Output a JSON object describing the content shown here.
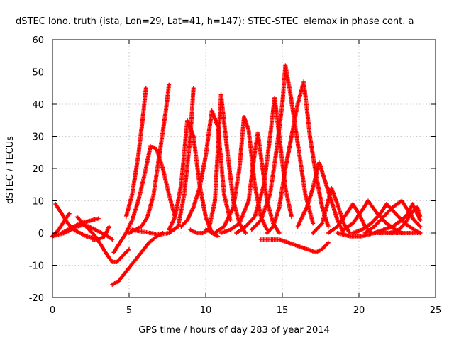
{
  "chart_data": {
    "type": "scatter",
    "title": "dSTEC Iono. truth (ista, Lon=29, Lat=41, h=147): STEC-STEC_elemax in phase cont. a",
    "xlabel": "GPS time / hours of day 283 of year 2014",
    "ylabel": "dSTEC  / TECUs",
    "xlim": [
      0,
      25
    ],
    "ylim": [
      -20,
      60
    ],
    "xticks": [
      "0",
      "5",
      "10",
      "15",
      "20",
      "25"
    ],
    "yticks": [
      "-20",
      "-10",
      "0",
      "10",
      "20",
      "30",
      "40",
      "50",
      "60"
    ],
    "grid": true,
    "marker": "plus",
    "color": "#ff0000",
    "series": [
      {
        "x": [
          0.0,
          0.4,
          0.8,
          1.2,
          1.6,
          2.0,
          2.4,
          2.8,
          3.2,
          3.6,
          3.9
        ],
        "y": [
          -1,
          -0.5,
          0,
          1,
          2,
          2.5,
          2,
          1,
          0,
          -1,
          -2
        ]
      },
      {
        "x": [
          0.2,
          0.6,
          1.0,
          1.4,
          1.8,
          2.2,
          2.6,
          3.0
        ],
        "y": [
          9,
          6,
          3,
          1,
          0,
          -1,
          -1.5,
          -2
        ]
      },
      {
        "x": [
          0.0,
          0.4,
          0.8,
          1.1
        ],
        "y": [
          -1,
          1,
          4,
          6
        ]
      },
      {
        "x": [
          0.6,
          1.0,
          1.4,
          1.8,
          2.2,
          2.6,
          3.0
        ],
        "y": [
          0,
          1,
          2,
          3,
          3.5,
          4,
          4.5
        ]
      },
      {
        "x": [
          1.6,
          2.0,
          2.4,
          2.8,
          3.2,
          3.6,
          3.9,
          4.2,
          4.6,
          5.0
        ],
        "y": [
          5,
          3,
          1,
          -1,
          -4,
          -7,
          -9,
          -9,
          -7,
          -5
        ]
      },
      {
        "x": [
          2.6,
          3.0,
          3.4,
          3.7
        ],
        "y": [
          -2,
          -2,
          -1,
          2
        ]
      },
      {
        "x": [
          3.9,
          4.3,
          4.8,
          5.3,
          5.8,
          6.3,
          6.8,
          7.2
        ],
        "y": [
          -16,
          -15,
          -12,
          -9,
          -6,
          -3,
          -1,
          0
        ]
      },
      {
        "x": [
          4.0,
          4.4,
          4.8,
          5.2,
          5.6,
          6.0,
          6.4,
          6.8,
          7.2,
          7.6,
          8.0
        ],
        "y": [
          -6,
          -3,
          0,
          4,
          10,
          18,
          27,
          26,
          20,
          12,
          5
        ]
      },
      {
        "x": [
          4.8,
          5.2,
          5.6,
          5.9,
          6.1
        ],
        "y": [
          5,
          12,
          24,
          36,
          45
        ]
      },
      {
        "x": [
          5.0,
          5.4,
          5.8,
          6.2,
          6.6,
          7.0,
          7.4,
          7.6
        ],
        "y": [
          0,
          1,
          2,
          5,
          12,
          25,
          38,
          46
        ]
      },
      {
        "x": [
          5.2,
          5.8,
          6.4,
          7.0,
          7.6,
          8.2,
          8.6,
          9.0,
          9.2
        ],
        "y": [
          1,
          0.5,
          0,
          -0.5,
          0,
          2,
          12,
          30,
          45
        ]
      },
      {
        "x": [
          7.6,
          8.0,
          8.4,
          8.8,
          9.2,
          9.6,
          10.0,
          10.4,
          10.8
        ],
        "y": [
          1,
          5,
          15,
          35,
          30,
          15,
          5,
          0,
          -1
        ]
      },
      {
        "x": [
          8.4,
          8.8,
          9.2,
          9.6,
          10.0,
          10.4,
          10.8,
          11.2,
          11.6
        ],
        "y": [
          2,
          4,
          8,
          14,
          24,
          38,
          33,
          12,
          4
        ]
      },
      {
        "x": [
          9.0,
          9.4,
          9.8,
          10.2,
          10.6,
          11.0,
          11.4,
          11.8,
          12.2,
          12.6
        ],
        "y": [
          1,
          0,
          0,
          1,
          10,
          43,
          26,
          10,
          3,
          0
        ]
      },
      {
        "x": [
          10.0,
          10.6,
          11.2,
          11.8,
          12.2,
          12.5,
          12.8,
          13.2,
          13.6,
          14.0
        ],
        "y": [
          1,
          0,
          2,
          8,
          20,
          36,
          32,
          15,
          5,
          1
        ]
      },
      {
        "x": [
          11.0,
          11.6,
          12.2,
          12.8,
          13.2,
          13.4,
          13.6,
          14.0,
          14.4,
          14.8
        ],
        "y": [
          0,
          1,
          3,
          10,
          25,
          31,
          24,
          10,
          3,
          0
        ]
      },
      {
        "x": [
          12.0,
          12.6,
          13.2,
          13.8,
          14.2,
          14.5,
          14.8,
          15.2,
          15.6
        ],
        "y": [
          0,
          2,
          5,
          15,
          30,
          42,
          30,
          14,
          5
        ]
      },
      {
        "x": [
          13.0,
          13.6,
          14.2,
          14.6,
          15.0,
          15.2,
          15.5,
          16.0,
          16.5,
          17.0
        ],
        "y": [
          1,
          4,
          12,
          25,
          40,
          52,
          44,
          28,
          12,
          3
        ]
      },
      {
        "x": [
          14.0,
          14.4,
          14.8,
          15.2,
          15.6,
          16.0,
          16.4,
          16.8,
          17.2,
          17.6,
          18.0
        ],
        "y": [
          0,
          2,
          8,
          20,
          30,
          40,
          47,
          30,
          18,
          8,
          2
        ]
      },
      {
        "x": [
          13.6,
          14.2,
          14.8,
          15.4,
          16.0,
          16.6,
          17.2,
          17.6,
          18.0
        ],
        "y": [
          -2,
          -2,
          -2,
          -3,
          -4,
          -5,
          -6,
          -5,
          -3
        ]
      },
      {
        "x": [
          16.0,
          16.6,
          17.0,
          17.4,
          17.8,
          18.2,
          18.6,
          19.0
        ],
        "y": [
          2,
          8,
          14,
          22,
          16,
          10,
          4,
          0
        ]
      },
      {
        "x": [
          17.0,
          17.6,
          18.0,
          18.2,
          18.6,
          19.0,
          19.4
        ],
        "y": [
          0,
          3,
          10,
          14,
          9,
          3,
          0
        ]
      },
      {
        "x": [
          18.0,
          18.6,
          19.2,
          19.6,
          20.0,
          20.4,
          20.8
        ],
        "y": [
          0,
          2,
          6,
          9,
          6,
          2,
          0
        ]
      },
      {
        "x": [
          19.0,
          19.6,
          20.2,
          20.6,
          21.2,
          21.8,
          22.4,
          22.8
        ],
        "y": [
          1,
          3,
          7,
          10,
          6,
          3,
          1,
          0
        ]
      },
      {
        "x": [
          19.6,
          20.2,
          20.8,
          21.4,
          21.8,
          22.4,
          23.0,
          23.6,
          24.0
        ],
        "y": [
          0,
          1,
          3,
          6,
          9,
          6,
          3,
          1,
          0
        ]
      },
      {
        "x": [
          20.4,
          21.0,
          21.6,
          22.2,
          22.8,
          23.2,
          23.6,
          24.0
        ],
        "y": [
          0,
          2,
          5,
          8,
          10,
          7,
          4,
          2
        ]
      },
      {
        "x": [
          21.0,
          21.6,
          22.2,
          22.8,
          23.2,
          23.5,
          23.8,
          24.0
        ],
        "y": [
          0,
          1,
          2,
          4,
          6,
          9,
          6,
          4
        ]
      },
      {
        "x": [
          22.0,
          22.6,
          23.0,
          23.4,
          23.8,
          24.0
        ],
        "y": [
          0,
          1,
          3,
          6,
          8,
          5
        ]
      },
      {
        "x": [
          18.6,
          19.4,
          20.2,
          21.0,
          21.8,
          22.6,
          23.4,
          24.0
        ],
        "y": [
          0,
          -1,
          -1,
          0,
          0,
          0,
          0,
          0
        ]
      }
    ]
  }
}
